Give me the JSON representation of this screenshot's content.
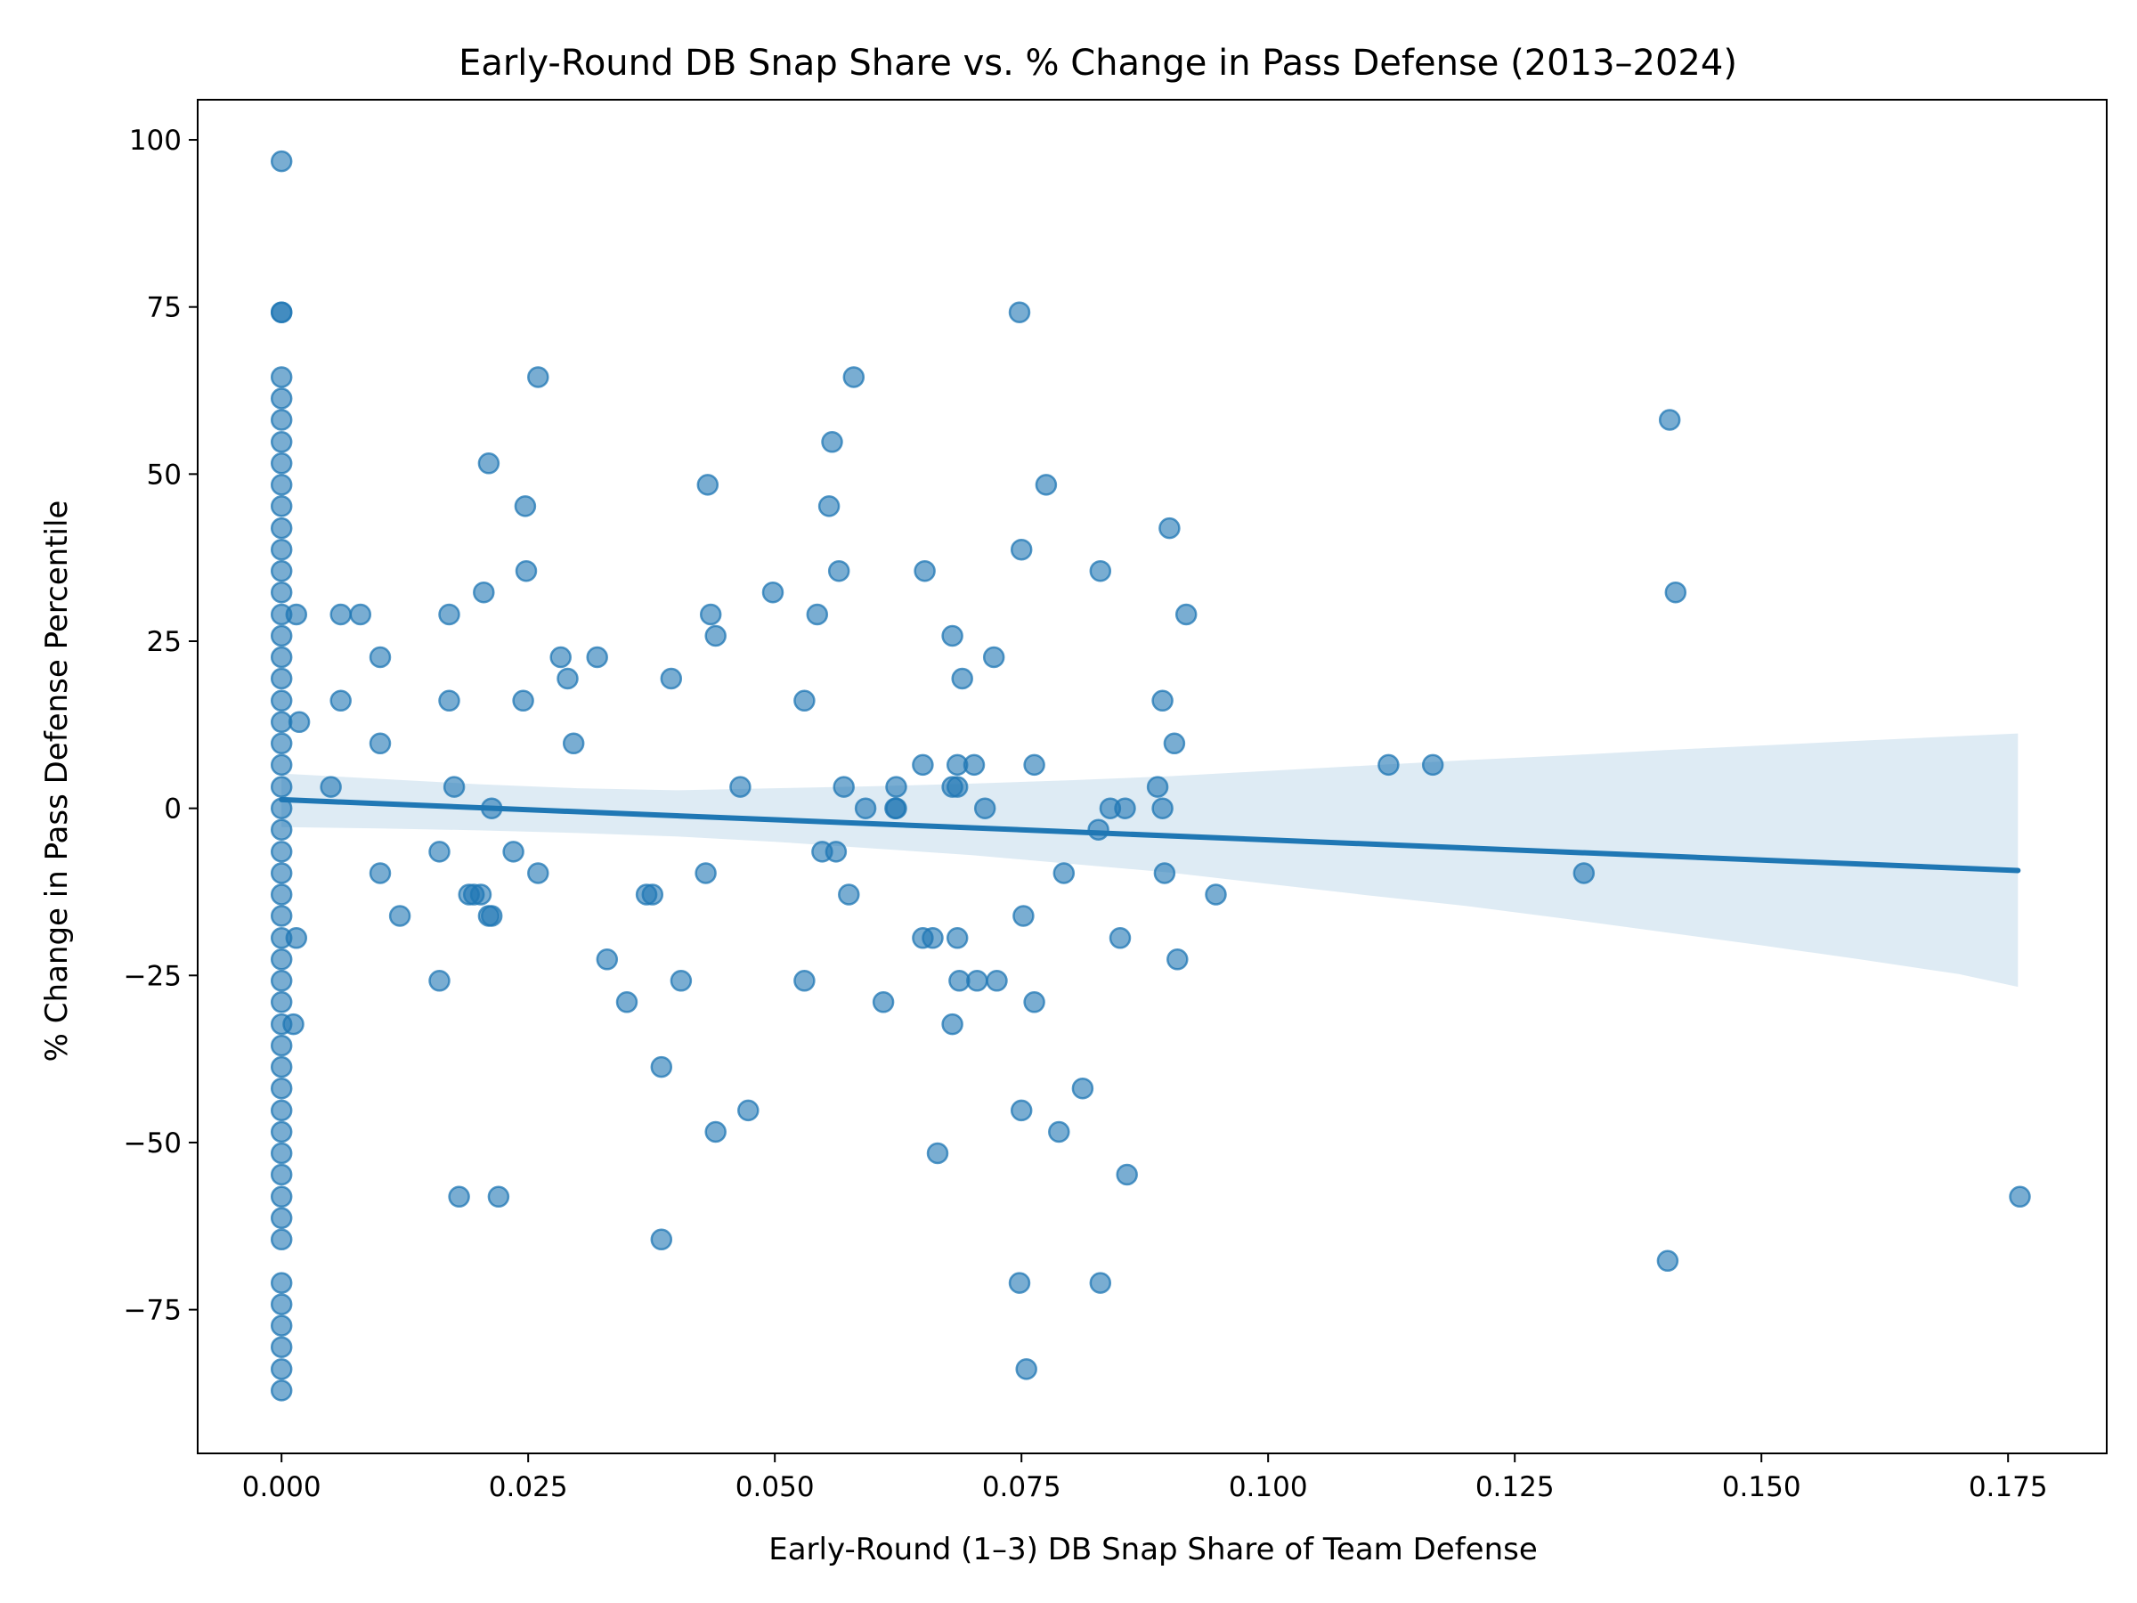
{
  "chart_data": {
    "type": "scatter",
    "title": "Early-Round DB Snap Share vs. % Change in Pass Defense (2013–2024)",
    "xlabel": "Early-Round (1–3) DB Snap Share of Team Defense",
    "ylabel": "% Change in Pass Defense Percentile",
    "xlim": [
      -0.0085,
      0.185
    ],
    "ylim": [
      -96.5,
      106
    ],
    "xticks": [
      0.0,
      0.025,
      0.05,
      0.075,
      0.1,
      0.125,
      0.15,
      0.175
    ],
    "xtick_labels": [
      "0.000",
      "0.025",
      "0.050",
      "0.075",
      "0.100",
      "0.125",
      "0.150",
      "0.175"
    ],
    "yticks": [
      -75,
      -50,
      -25,
      0,
      25,
      50,
      75,
      100
    ],
    "ytick_labels": [
      "−75",
      "−50",
      "−25",
      "0",
      "25",
      "50",
      "75",
      "100"
    ],
    "grid": false,
    "colors": {
      "points": "#1f77b4",
      "band": "#1f77b4",
      "line": "#1f77b4"
    },
    "regression": {
      "x": [
        0.0,
        0.176
      ],
      "y": [
        1.3,
        -9.3
      ],
      "ci_band": [
        {
          "x": 0.0,
          "lower": -2.8,
          "upper": 5.2
        },
        {
          "x": 0.01,
          "lower": -3.0,
          "upper": 4.4
        },
        {
          "x": 0.02,
          "lower": -3.3,
          "upper": 3.6
        },
        {
          "x": 0.03,
          "lower": -3.7,
          "upper": 3.0
        },
        {
          "x": 0.04,
          "lower": -4.2,
          "upper": 2.7
        },
        {
          "x": 0.05,
          "lower": -5.0,
          "upper": 3.0
        },
        {
          "x": 0.06,
          "lower": -6.0,
          "upper": 3.3
        },
        {
          "x": 0.07,
          "lower": -7.0,
          "upper": 3.7
        },
        {
          "x": 0.08,
          "lower": -8.3,
          "upper": 4.2
        },
        {
          "x": 0.09,
          "lower": -9.6,
          "upper": 4.8
        },
        {
          "x": 0.1,
          "lower": -11.3,
          "upper": 5.6
        },
        {
          "x": 0.11,
          "lower": -13.0,
          "upper": 6.4
        },
        {
          "x": 0.12,
          "lower": -14.6,
          "upper": 7.2
        },
        {
          "x": 0.13,
          "lower": -16.5,
          "upper": 7.9
        },
        {
          "x": 0.14,
          "lower": -18.5,
          "upper": 8.7
        },
        {
          "x": 0.15,
          "lower": -20.5,
          "upper": 9.4
        },
        {
          "x": 0.16,
          "lower": -22.6,
          "upper": 10.1
        },
        {
          "x": 0.17,
          "lower": -24.8,
          "upper": 10.8
        },
        {
          "x": 0.176,
          "lower": -26.7,
          "upper": 11.2
        }
      ]
    },
    "points": [
      [
        0.0,
        96.8
      ],
      [
        0.0,
        74.2
      ],
      [
        0.0,
        74.2
      ],
      [
        0.0,
        64.5
      ],
      [
        0.0,
        61.3
      ],
      [
        0.0,
        58.1
      ],
      [
        0.0,
        54.8
      ],
      [
        0.0,
        51.6
      ],
      [
        0.0,
        48.4
      ],
      [
        0.0,
        45.2
      ],
      [
        0.0,
        41.9
      ],
      [
        0.0,
        38.7
      ],
      [
        0.0,
        35.5
      ],
      [
        0.0,
        32.3
      ],
      [
        0.0,
        29.0
      ],
      [
        0.0,
        25.8
      ],
      [
        0.0,
        22.6
      ],
      [
        0.0,
        19.4
      ],
      [
        0.0,
        16.1
      ],
      [
        0.0,
        12.9
      ],
      [
        0.0,
        9.7
      ],
      [
        0.0,
        6.5
      ],
      [
        0.0,
        3.2
      ],
      [
        0.0,
        0.0
      ],
      [
        0.0,
        -3.2
      ],
      [
        0.0,
        -6.5
      ],
      [
        0.0,
        -9.7
      ],
      [
        0.0,
        -12.9
      ],
      [
        0.0,
        -16.1
      ],
      [
        0.0,
        -19.4
      ],
      [
        0.0,
        -22.6
      ],
      [
        0.0,
        -25.8
      ],
      [
        0.0,
        -29.0
      ],
      [
        0.0,
        -32.3
      ],
      [
        0.0,
        -35.5
      ],
      [
        0.0,
        -38.7
      ],
      [
        0.0,
        -41.9
      ],
      [
        0.0,
        -45.2
      ],
      [
        0.0,
        -48.4
      ],
      [
        0.0,
        -51.6
      ],
      [
        0.0,
        -54.8
      ],
      [
        0.0,
        -58.1
      ],
      [
        0.0,
        -61.3
      ],
      [
        0.0,
        -64.5
      ],
      [
        0.0,
        -71.0
      ],
      [
        0.0,
        -74.2
      ],
      [
        0.0,
        -77.4
      ],
      [
        0.0,
        -80.6
      ],
      [
        0.0,
        -83.9
      ],
      [
        0.0,
        -87.1
      ],
      [
        0.0015,
        29.0
      ],
      [
        0.0018,
        12.9
      ],
      [
        0.0015,
        -19.4
      ],
      [
        0.0012,
        -32.3
      ],
      [
        0.005,
        3.2
      ],
      [
        0.006,
        29.0
      ],
      [
        0.006,
        16.1
      ],
      [
        0.008,
        29.0
      ],
      [
        0.01,
        22.6
      ],
      [
        0.01,
        9.7
      ],
      [
        0.01,
        -9.7
      ],
      [
        0.012,
        -16.1
      ],
      [
        0.016,
        -6.5
      ],
      [
        0.016,
        -25.8
      ],
      [
        0.017,
        29.0
      ],
      [
        0.017,
        16.1
      ],
      [
        0.0175,
        3.2
      ],
      [
        0.018,
        -58.1
      ],
      [
        0.019,
        -12.9
      ],
      [
        0.0195,
        -12.9
      ],
      [
        0.0202,
        -12.9
      ],
      [
        0.0205,
        32.3
      ],
      [
        0.021,
        51.6
      ],
      [
        0.021,
        -16.1
      ],
      [
        0.0213,
        -16.1
      ],
      [
        0.0213,
        0.0
      ],
      [
        0.022,
        -58.1
      ],
      [
        0.0235,
        -6.5
      ],
      [
        0.0245,
        16.1
      ],
      [
        0.0247,
        45.2
      ],
      [
        0.0248,
        35.5
      ],
      [
        0.026,
        64.5
      ],
      [
        0.026,
        -9.7
      ],
      [
        0.0283,
        22.6
      ],
      [
        0.029,
        19.4
      ],
      [
        0.0296,
        9.7
      ],
      [
        0.032,
        22.6
      ],
      [
        0.033,
        -22.6
      ],
      [
        0.035,
        -29.0
      ],
      [
        0.037,
        -12.9
      ],
      [
        0.0376,
        -12.9
      ],
      [
        0.0385,
        -38.7
      ],
      [
        0.0385,
        -64.5
      ],
      [
        0.0395,
        19.4
      ],
      [
        0.0405,
        -25.8
      ],
      [
        0.043,
        -9.7
      ],
      [
        0.0432,
        48.4
      ],
      [
        0.0435,
        29.0
      ],
      [
        0.044,
        25.8
      ],
      [
        0.044,
        -48.4
      ],
      [
        0.0465,
        3.2
      ],
      [
        0.0473,
        -45.2
      ],
      [
        0.0498,
        32.3
      ],
      [
        0.053,
        16.1
      ],
      [
        0.053,
        -25.8
      ],
      [
        0.0543,
        29.0
      ],
      [
        0.0548,
        -6.5
      ],
      [
        0.0555,
        45.2
      ],
      [
        0.0558,
        54.8
      ],
      [
        0.0562,
        -6.5
      ],
      [
        0.0565,
        35.5
      ],
      [
        0.057,
        3.2
      ],
      [
        0.0575,
        -12.9
      ],
      [
        0.058,
        64.5
      ],
      [
        0.0592,
        0.0
      ],
      [
        0.061,
        -29.0
      ],
      [
        0.0622,
        0.0
      ],
      [
        0.0623,
        3.2
      ],
      [
        0.0623,
        0.0
      ],
      [
        0.065,
        6.5
      ],
      [
        0.065,
        -19.4
      ],
      [
        0.0652,
        35.5
      ],
      [
        0.066,
        -19.4
      ],
      [
        0.0665,
        -51.6
      ],
      [
        0.068,
        25.8
      ],
      [
        0.068,
        3.2
      ],
      [
        0.068,
        -32.3
      ],
      [
        0.0685,
        6.5
      ],
      [
        0.0685,
        3.2
      ],
      [
        0.0685,
        -19.4
      ],
      [
        0.0687,
        -25.8
      ],
      [
        0.069,
        19.4
      ],
      [
        0.0702,
        6.5
      ],
      [
        0.0705,
        -25.8
      ],
      [
        0.0713,
        0.0
      ],
      [
        0.0722,
        22.6
      ],
      [
        0.0725,
        -25.8
      ],
      [
        0.0748,
        74.2
      ],
      [
        0.0748,
        -71.0
      ],
      [
        0.075,
        38.7
      ],
      [
        0.075,
        -45.2
      ],
      [
        0.0752,
        -16.1
      ],
      [
        0.0755,
        -83.9
      ],
      [
        0.0763,
        6.5
      ],
      [
        0.0763,
        -29.0
      ],
      [
        0.0775,
        48.4
      ],
      [
        0.0788,
        -48.4
      ],
      [
        0.0793,
        -9.7
      ],
      [
        0.0812,
        -41.9
      ],
      [
        0.0828,
        -3.2
      ],
      [
        0.083,
        35.5
      ],
      [
        0.083,
        -71.0
      ],
      [
        0.084,
        0.0
      ],
      [
        0.085,
        -19.4
      ],
      [
        0.0855,
        0.0
      ],
      [
        0.0857,
        -54.8
      ],
      [
        0.0888,
        3.2
      ],
      [
        0.0893,
        0.0
      ],
      [
        0.0893,
        16.1
      ],
      [
        0.0895,
        -9.7
      ],
      [
        0.09,
        41.9
      ],
      [
        0.0905,
        9.7
      ],
      [
        0.0908,
        -22.6
      ],
      [
        0.0917,
        29.0
      ],
      [
        0.0947,
        -12.9
      ],
      [
        0.1122,
        6.5
      ],
      [
        0.1167,
        6.5
      ],
      [
        0.132,
        -9.7
      ],
      [
        0.1405,
        -67.7
      ],
      [
        0.1407,
        58.1
      ],
      [
        0.1413,
        32.3
      ],
      [
        0.1762,
        -58.1
      ]
    ]
  }
}
